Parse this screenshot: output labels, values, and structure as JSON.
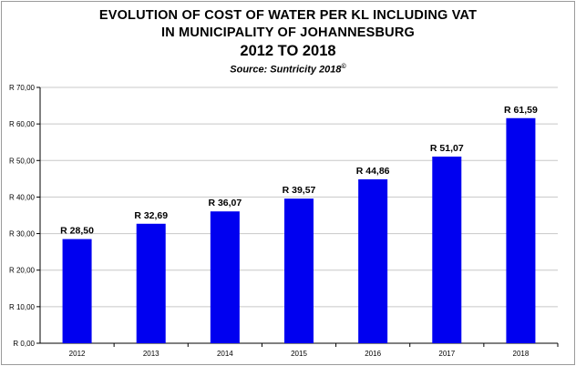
{
  "chart_data": {
    "type": "bar",
    "title_line1": "EVOLUTION OF COST OF WATER PER KL INCLUDING VAT",
    "title_line2": "IN MUNICIPALITY OF JOHANNESBURG",
    "title_line3": "2012 TO 2018",
    "subtitle": "Source: Suntricity 2018",
    "subtitle_mark": "©",
    "categories": [
      "2012",
      "2013",
      "2014",
      "2015",
      "2016",
      "2017",
      "2018"
    ],
    "values": [
      28.5,
      32.69,
      36.07,
      39.57,
      44.86,
      51.07,
      61.59
    ],
    "data_labels": [
      "R 28,50",
      "R 32,69",
      "R 36,07",
      "R 39,57",
      "R 44,86",
      "R 51,07",
      "R 61,59"
    ],
    "y_ticks": [
      0,
      10,
      20,
      30,
      40,
      50,
      60,
      70
    ],
    "y_tick_labels": [
      "R 0,00",
      "R 10,00",
      "R 20,00",
      "R 30,00",
      "R 40,00",
      "R 50,00",
      "R 60,00",
      "R 70,00"
    ],
    "ylim": [
      0,
      70
    ],
    "grid": true,
    "legend": "none",
    "bar_color": "#0000f0",
    "grid_color": "#c8c8c8"
  }
}
